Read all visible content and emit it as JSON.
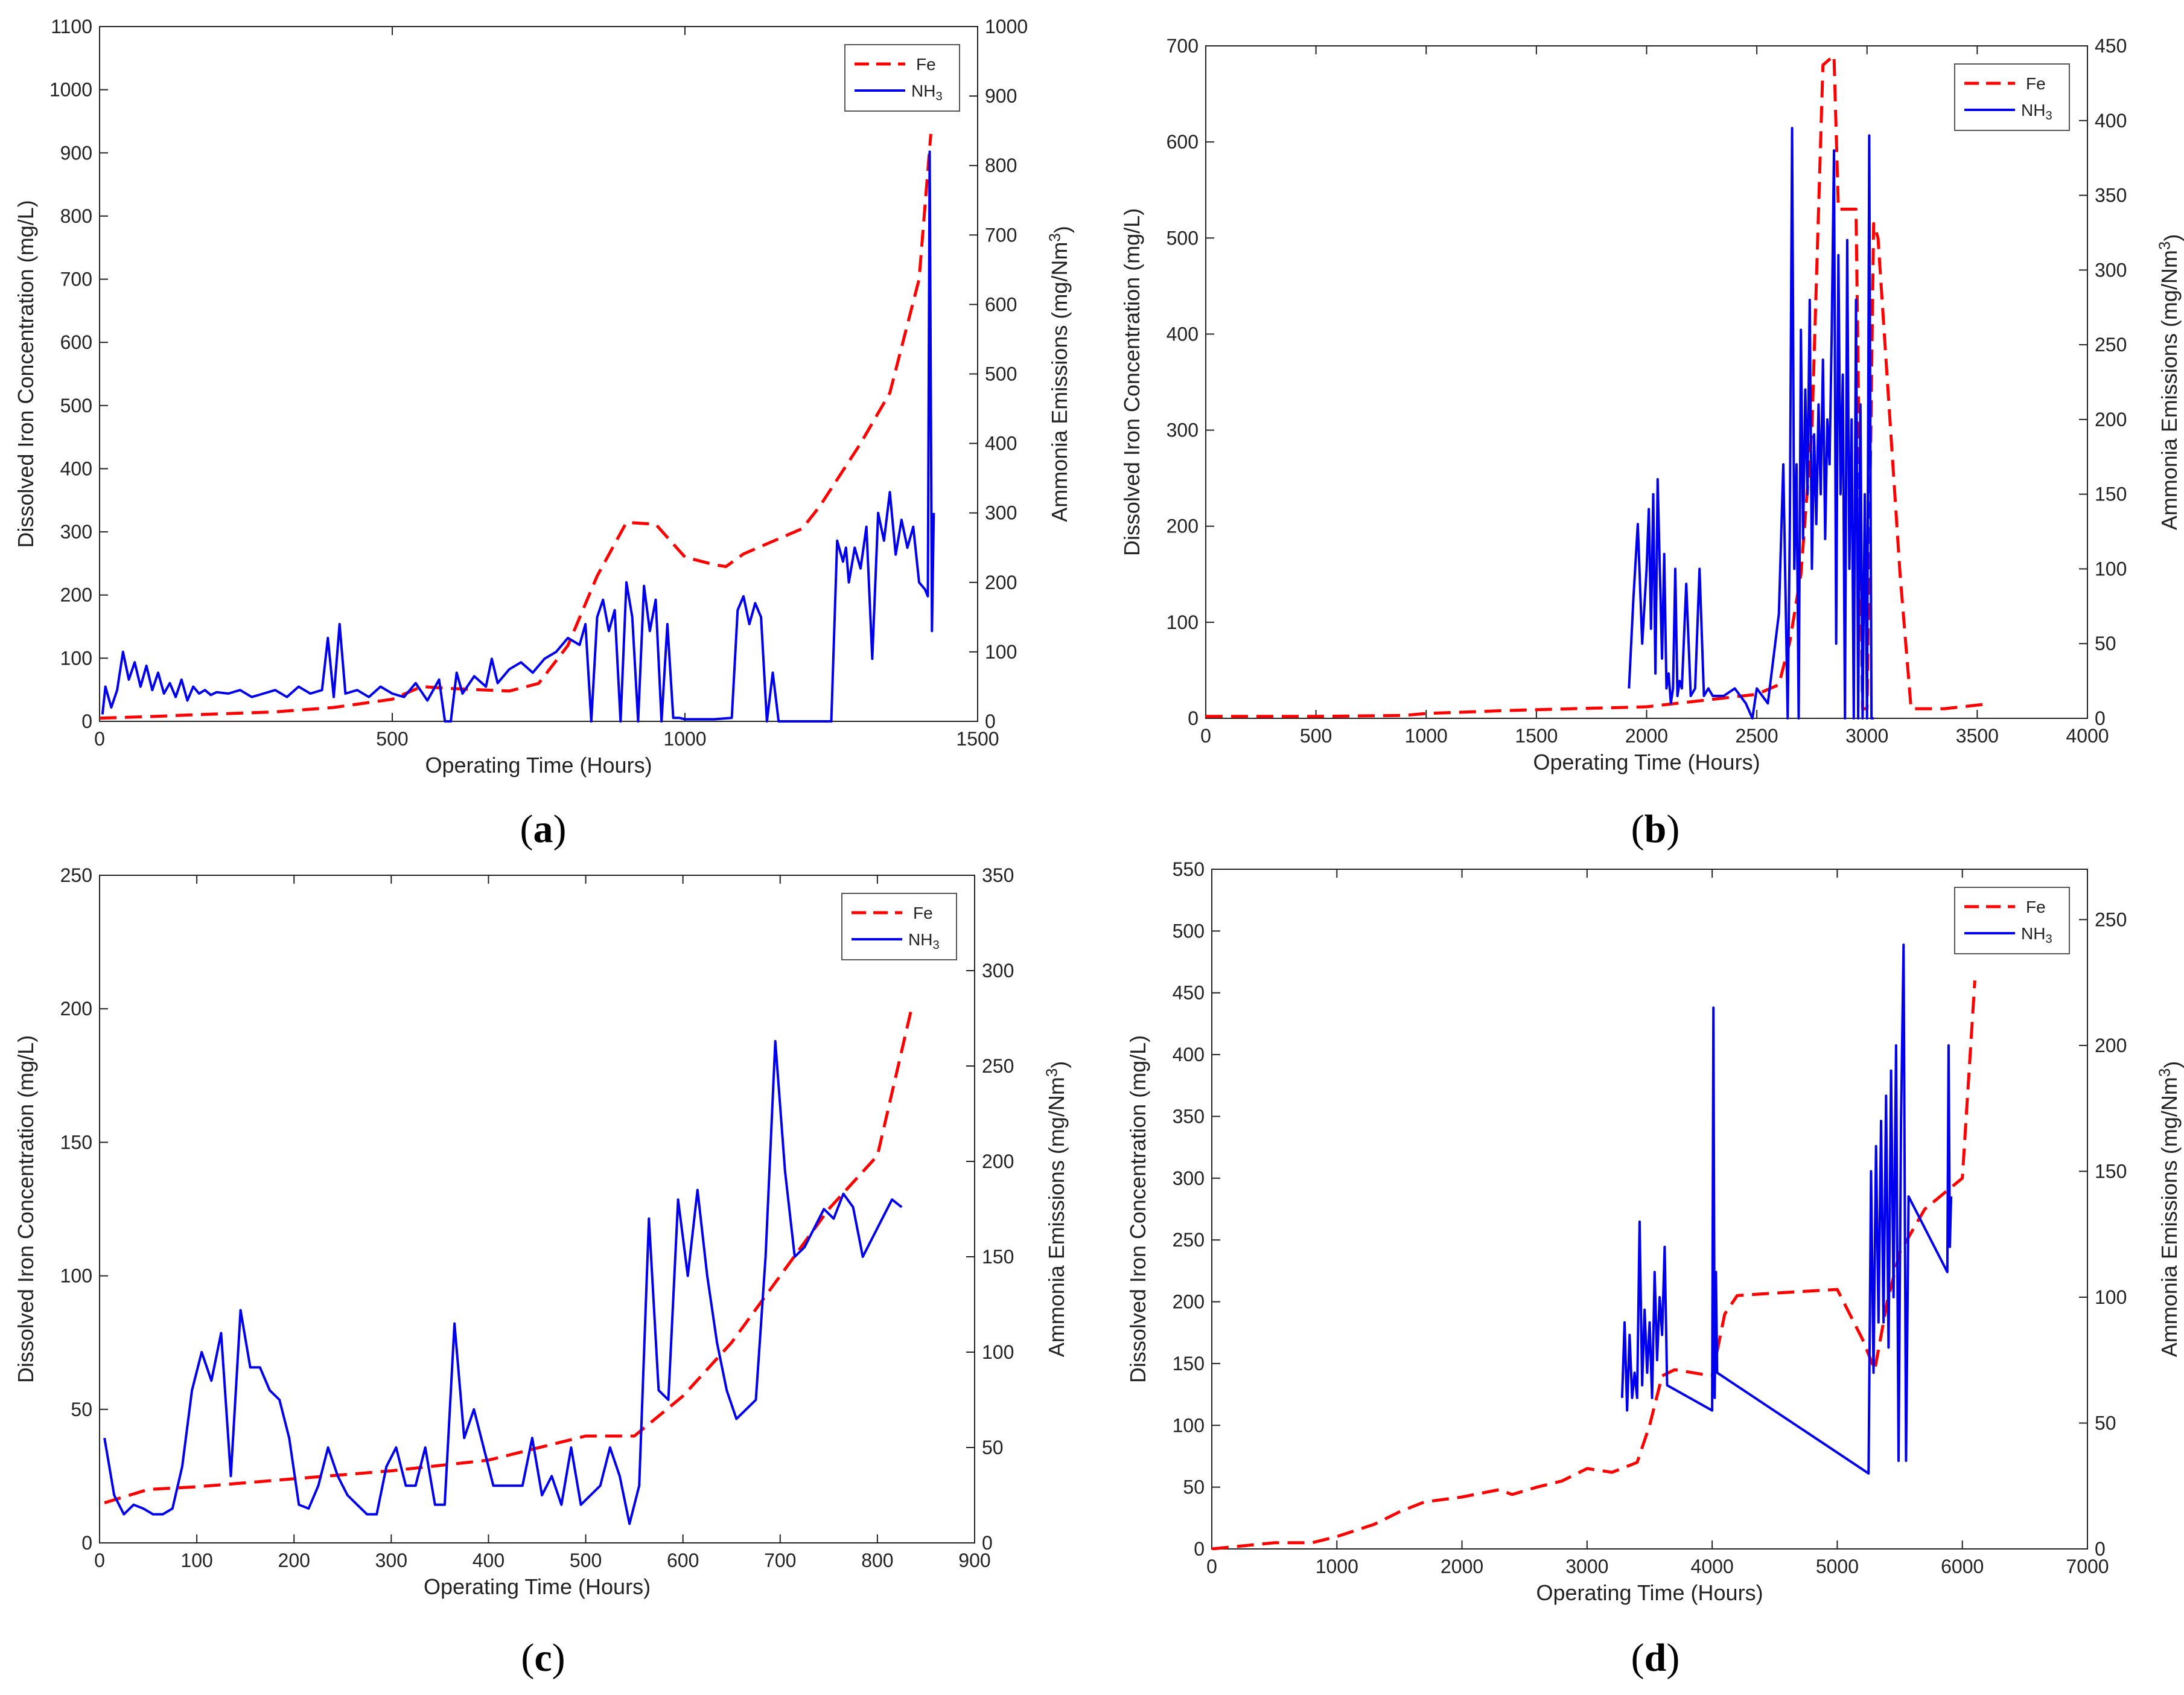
{
  "colors": {
    "fe": "#ff0000",
    "nh3": "#0000ee",
    "axis": "#222222"
  },
  "chart_data": [
    {
      "id": "a",
      "type": "line",
      "panel_label": {
        "open": "(",
        "letter": "a",
        "close": ")"
      },
      "xlabel": "Operating Time (Hours)",
      "ylabel_left": "Dissolved Iron Concentration (mg/L)",
      "ylabel_right": "Ammonia Emissions (mg/Nm3)",
      "xlim": [
        0,
        1500
      ],
      "ylim_left": [
        0,
        1100
      ],
      "ylim_right": [
        0,
        1000
      ],
      "xticks": [
        0,
        500,
        1000,
        1500
      ],
      "yticks_left": [
        0,
        100,
        200,
        300,
        400,
        500,
        600,
        700,
        800,
        900,
        1000,
        1100
      ],
      "yticks_right": [
        0,
        100,
        200,
        300,
        400,
        500,
        600,
        700,
        800,
        900,
        1000
      ],
      "legend": [
        "Fe",
        "NH3"
      ],
      "series": [
        {
          "name": "Fe",
          "axis": "left",
          "style": "dashed",
          "x": [
            0,
            100,
            150,
            300,
            400,
            500,
            550,
            600,
            650,
            700,
            750,
            800,
            850,
            900,
            950,
            1000,
            1050,
            1070,
            1100,
            1200,
            1230,
            1300,
            1350,
            1400,
            1420
          ],
          "y": [
            5,
            8,
            10,
            15,
            22,
            35,
            55,
            52,
            50,
            48,
            60,
            120,
            230,
            315,
            312,
            260,
            248,
            245,
            265,
            305,
            340,
            440,
            520,
            700,
            930
          ]
        },
        {
          "name": "NH3",
          "axis": "right",
          "style": "solid",
          "x": [
            5,
            10,
            20,
            30,
            40,
            50,
            60,
            70,
            80,
            90,
            100,
            110,
            120,
            130,
            140,
            150,
            160,
            170,
            180,
            190,
            200,
            220,
            240,
            260,
            280,
            300,
            320,
            340,
            360,
            380,
            390,
            400,
            410,
            420,
            440,
            460,
            480,
            500,
            520,
            540,
            560,
            580,
            590,
            600,
            610,
            620,
            640,
            660,
            670,
            680,
            700,
            720,
            740,
            760,
            780,
            800,
            820,
            830,
            840,
            850,
            860,
            870,
            880,
            890,
            900,
            910,
            920,
            930,
            940,
            950,
            960,
            970,
            980,
            990,
            1000,
            1050,
            1080,
            1090,
            1100,
            1110,
            1120,
            1130,
            1140,
            1150,
            1160,
            1200,
            1250,
            1260,
            1270,
            1275,
            1280,
            1290,
            1300,
            1310,
            1320,
            1330,
            1340,
            1350,
            1360,
            1370,
            1380,
            1390,
            1400,
            1410,
            1415,
            1418,
            1422,
            1425
          ],
          "y": [
            10,
            50,
            20,
            45,
            100,
            60,
            85,
            50,
            80,
            45,
            70,
            40,
            55,
            35,
            60,
            30,
            50,
            40,
            45,
            38,
            42,
            40,
            45,
            35,
            40,
            45,
            35,
            50,
            40,
            45,
            120,
            35,
            140,
            40,
            45,
            35,
            50,
            40,
            35,
            55,
            30,
            60,
            0,
            0,
            70,
            40,
            65,
            50,
            90,
            55,
            75,
            85,
            70,
            90,
            100,
            120,
            110,
            140,
            0,
            150,
            175,
            130,
            160,
            0,
            200,
            150,
            0,
            195,
            130,
            175,
            0,
            140,
            5,
            5,
            3,
            3,
            5,
            160,
            180,
            140,
            170,
            150,
            0,
            70,
            0,
            0,
            0,
            260,
            230,
            250,
            200,
            250,
            220,
            280,
            90,
            300,
            260,
            330,
            240,
            290,
            250,
            280,
            200,
            190,
            180,
            820,
            130,
            300
          ]
        }
      ]
    },
    {
      "id": "b",
      "type": "line",
      "panel_label": {
        "open": "(",
        "letter": "b",
        "close": ")"
      },
      "xlabel": "Operating Time (Hours)",
      "ylabel_left": "Dissolved Iron Concentration (mg/L)",
      "ylabel_right": "Ammonia Emissions (mg/Nm3)",
      "xlim": [
        0,
        4000
      ],
      "ylim_left": [
        0,
        700
      ],
      "ylim_right": [
        0,
        450
      ],
      "xticks": [
        0,
        500,
        1000,
        1500,
        2000,
        2500,
        3000,
        3500,
        4000
      ],
      "yticks_left": [
        0,
        100,
        200,
        300,
        400,
        500,
        600,
        700
      ],
      "yticks_right": [
        0,
        50,
        100,
        150,
        200,
        250,
        300,
        350,
        400,
        450
      ],
      "legend": [
        "Fe",
        "NH3"
      ],
      "series": [
        {
          "name": "Fe",
          "axis": "left",
          "style": "dashed",
          "x": [
            0,
            500,
            900,
            1000,
            1350,
            1500,
            2000,
            2500,
            2600,
            2650,
            2700,
            2750,
            2800,
            2850,
            2870,
            2900,
            2950,
            2980,
            3000,
            3030,
            3050,
            3150,
            3200,
            3350,
            3550
          ],
          "y": [
            2,
            2,
            3,
            5,
            8,
            9,
            12,
            25,
            35,
            80,
            150,
            300,
            680,
            690,
            530,
            530,
            530,
            10,
            10,
            515,
            500,
            150,
            10,
            10,
            15
          ]
        },
        {
          "name": "NH3",
          "axis": "right",
          "style": "solid",
          "x": [
            1920,
            1940,
            1960,
            1980,
            2000,
            2010,
            2020,
            2030,
            2040,
            2050,
            2060,
            2070,
            2080,
            2090,
            2100,
            2110,
            2120,
            2130,
            2140,
            2150,
            2160,
            2180,
            2200,
            2220,
            2240,
            2260,
            2280,
            2300,
            2350,
            2400,
            2450,
            2480,
            2500,
            2550,
            2600,
            2620,
            2640,
            2650,
            2660,
            2670,
            2680,
            2690,
            2700,
            2710,
            2720,
            2730,
            2740,
            2750,
            2760,
            2770,
            2780,
            2790,
            2800,
            2810,
            2820,
            2830,
            2840,
            2850,
            2860,
            2870,
            2880,
            2890,
            2900,
            2910,
            2920,
            2930,
            2940,
            2950,
            2960,
            2970,
            2980,
            2990,
            3000,
            3010,
            3020,
            3030
          ],
          "y": [
            20,
            80,
            130,
            50,
            100,
            140,
            60,
            150,
            30,
            160,
            100,
            40,
            110,
            20,
            30,
            10,
            20,
            100,
            15,
            25,
            20,
            90,
            15,
            20,
            100,
            15,
            20,
            15,
            15,
            20,
            10,
            0,
            20,
            10,
            70,
            170,
            0,
            130,
            395,
            100,
            170,
            0,
            260,
            120,
            220,
            150,
            280,
            100,
            190,
            130,
            210,
            150,
            240,
            120,
            200,
            170,
            260,
            380,
            50,
            310,
            150,
            230,
            0,
            320,
            100,
            200,
            0,
            280,
            0,
            210,
            0,
            150,
            0,
            390,
            0,
            0
          ]
        }
      ]
    },
    {
      "id": "c",
      "type": "line",
      "panel_label": {
        "open": "(",
        "letter": "c",
        "close": ")"
      },
      "xlabel": "Operating Time (Hours)",
      "ylabel_left": "Dissolved Iron Concentration (mg/L)",
      "ylabel_right": "Ammonia Emissions (mg/Nm3)",
      "xlim": [
        0,
        900
      ],
      "ylim_left": [
        0,
        250
      ],
      "ylim_right": [
        0,
        350
      ],
      "xticks": [
        0,
        100,
        200,
        300,
        400,
        500,
        600,
        700,
        800,
        900
      ],
      "yticks_left": [
        0,
        50,
        100,
        150,
        200,
        250
      ],
      "yticks_right": [
        0,
        50,
        100,
        150,
        200,
        250,
        300,
        350
      ],
      "legend": [
        "Fe",
        "NH3"
      ],
      "series": [
        {
          "name": "Fe",
          "axis": "left",
          "style": "dashed",
          "x": [
            5,
            50,
            100,
            200,
            300,
            400,
            500,
            550,
            600,
            650,
            700,
            750,
            800,
            835
          ],
          "y": [
            15,
            20,
            21,
            24,
            27,
            31,
            40,
            40,
            55,
            75,
            100,
            125,
            145,
            200
          ]
        },
        {
          "name": "NH3",
          "axis": "right",
          "style": "solid",
          "x": [
            5,
            15,
            25,
            35,
            45,
            55,
            65,
            75,
            85,
            95,
            105,
            115,
            125,
            135,
            145,
            155,
            165,
            175,
            185,
            195,
            205,
            215,
            225,
            235,
            245,
            255,
            265,
            275,
            285,
            295,
            305,
            315,
            325,
            335,
            345,
            355,
            365,
            375,
            385,
            395,
            405,
            415,
            425,
            435,
            445,
            455,
            465,
            475,
            485,
            495,
            505,
            515,
            525,
            535,
            545,
            555,
            565,
            575,
            585,
            595,
            605,
            615,
            625,
            635,
            645,
            655,
            665,
            675,
            685,
            695,
            705,
            715,
            725,
            735,
            745,
            755,
            765,
            775,
            785,
            795,
            805,
            815,
            825
          ],
          "y": [
            55,
            25,
            15,
            20,
            18,
            15,
            15,
            18,
            40,
            80,
            100,
            85,
            110,
            35,
            122,
            92,
            92,
            80,
            75,
            55,
            20,
            18,
            30,
            50,
            35,
            25,
            20,
            15,
            15,
            40,
            50,
            30,
            30,
            50,
            20,
            20,
            115,
            55,
            70,
            50,
            30,
            30,
            30,
            30,
            55,
            25,
            35,
            20,
            50,
            20,
            25,
            30,
            50,
            35,
            10,
            30,
            170,
            80,
            75,
            180,
            140,
            185,
            140,
            105,
            80,
            65,
            70,
            75,
            150,
            263,
            195,
            150,
            155,
            165,
            175,
            170,
            183,
            176,
            150,
            160,
            170,
            180,
            176
          ]
        }
      ]
    },
    {
      "id": "d",
      "type": "line",
      "panel_label": {
        "open": "(",
        "letter": "d",
        "close": ")"
      },
      "xlabel": "Operating Time (Hours)",
      "ylabel_left": "Dissolved Iron Concentration (mg/L)",
      "ylabel_right": "Ammonia Emissions (mg/Nm3)",
      "xlim": [
        0,
        7000
      ],
      "ylim_left": [
        0,
        550
      ],
      "ylim_right": [
        0,
        270
      ],
      "xticks": [
        0,
        1000,
        2000,
        3000,
        4000,
        5000,
        6000,
        7000
      ],
      "yticks_left": [
        0,
        50,
        100,
        150,
        200,
        250,
        300,
        350,
        400,
        450,
        500,
        550
      ],
      "yticks_right": [
        0,
        50,
        100,
        150,
        200,
        250
      ],
      "legend": [
        "Fe",
        "NH3"
      ],
      "series": [
        {
          "name": "Fe",
          "axis": "left",
          "style": "dashed",
          "x": [
            0,
            500,
            800,
            1000,
            1300,
            1500,
            1700,
            2000,
            2300,
            2400,
            2600,
            2800,
            3000,
            3200,
            3400,
            3500,
            3600,
            3700,
            4000,
            4100,
            4200,
            4500,
            5000,
            5200,
            5300,
            5400,
            5500,
            5700,
            6000,
            6100
          ],
          "y": [
            0,
            5,
            5,
            10,
            20,
            30,
            38,
            42,
            48,
            44,
            50,
            55,
            65,
            62,
            70,
            100,
            140,
            145,
            140,
            190,
            205,
            207,
            210,
            170,
            145,
            200,
            240,
            275,
            300,
            460
          ]
        },
        {
          "name": "NH3",
          "axis": "right",
          "style": "solid",
          "x": [
            3280,
            3300,
            3320,
            3340,
            3360,
            3380,
            3400,
            3420,
            3440,
            3460,
            3480,
            3500,
            3520,
            3540,
            3560,
            3580,
            3600,
            3620,
            3640,
            4000,
            4010,
            4020,
            4030,
            4040,
            5250,
            5270,
            5290,
            5310,
            5330,
            5350,
            5370,
            5390,
            5410,
            5430,
            5450,
            5470,
            5490,
            5510,
            5530,
            5550,
            5570,
            5880,
            5890,
            5900,
            5910
          ],
          "y": [
            60,
            90,
            55,
            85,
            60,
            70,
            60,
            130,
            65,
            95,
            70,
            90,
            60,
            110,
            75,
            100,
            85,
            120,
            65,
            55,
            215,
            60,
            110,
            70,
            30,
            150,
            70,
            160,
            90,
            170,
            90,
            180,
            80,
            190,
            100,
            200,
            35,
            170,
            240,
            35,
            140,
            110,
            200,
            120,
            140
          ]
        }
      ]
    }
  ]
}
